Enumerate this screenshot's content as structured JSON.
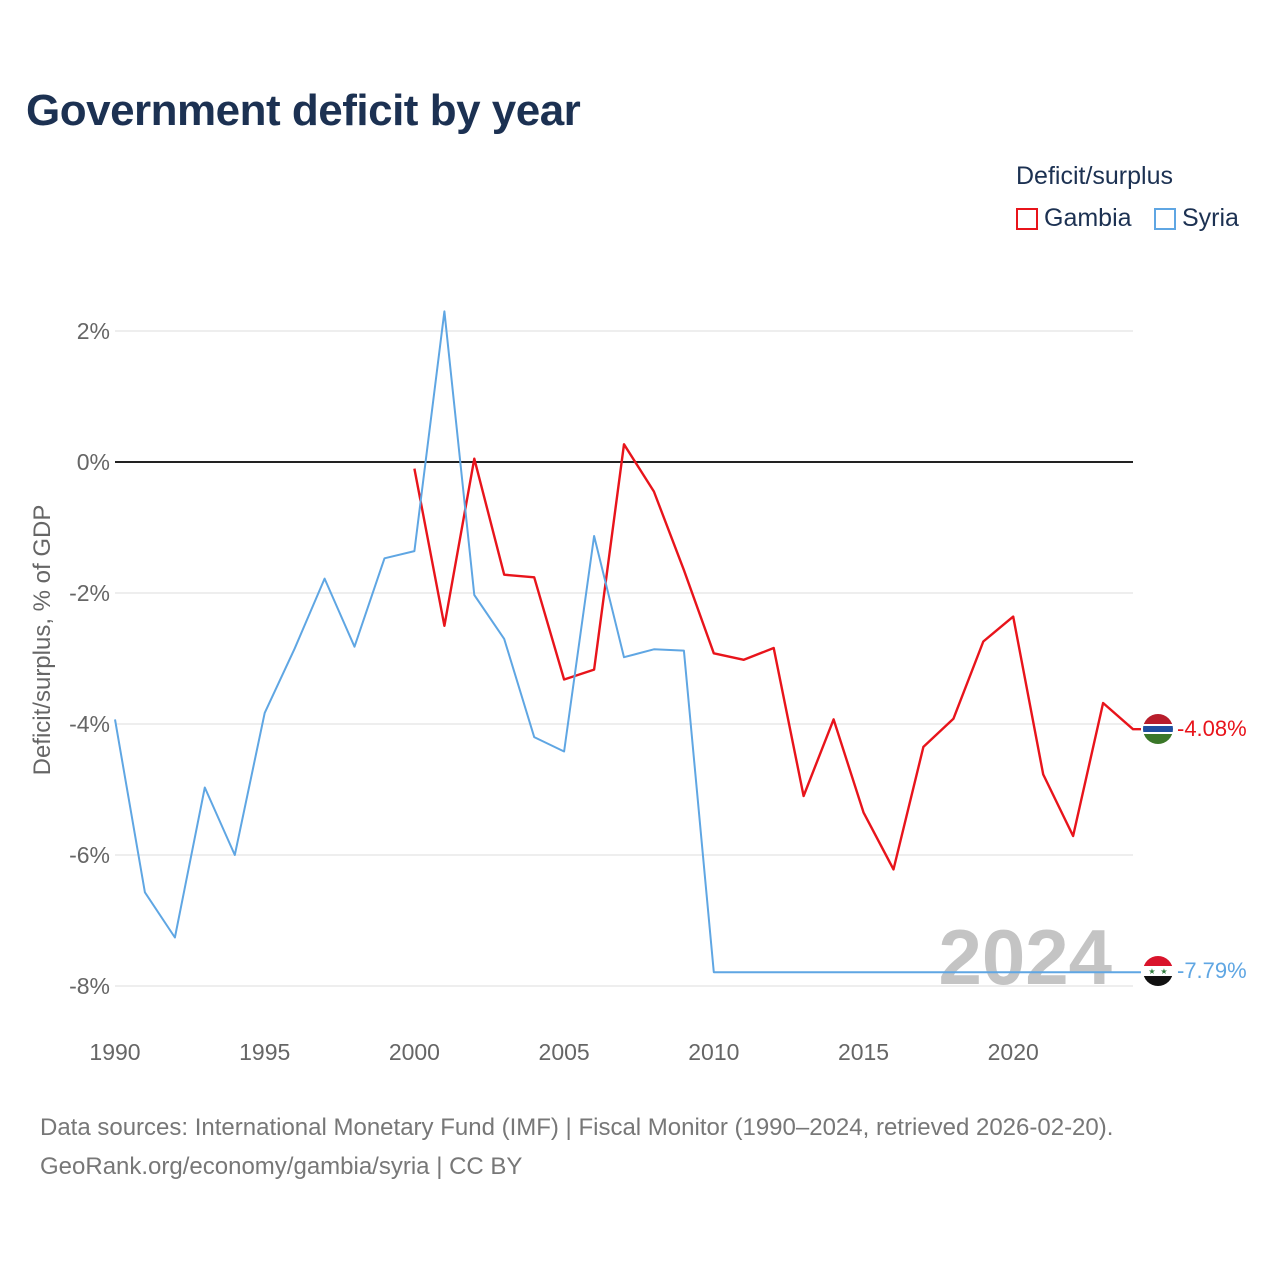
{
  "title": "Government deficit by year",
  "legend": {
    "title": "Deficit/surplus",
    "items": [
      {
        "label": "Gambia",
        "color": "#e8141b"
      },
      {
        "label": "Syria",
        "color": "#5fa6e3"
      }
    ]
  },
  "source_line1": "Data sources: International Monetary Fund (IMF) | Fiscal Monitor (1990–2024, retrieved 2026-02-20).",
  "source_line2": "GeoRank.org/economy/gambia/syria | CC BY",
  "chart_data": {
    "type": "line",
    "title": "Government deficit by year",
    "xlabel": "",
    "ylabel": "Deficit/surplus, % of GDP",
    "xlim": [
      1990,
      2024
    ],
    "ylim": [
      -8,
      2
    ],
    "yticks": [
      2,
      0,
      -2,
      -4,
      -6,
      -8
    ],
    "ytick_labels": [
      "2%",
      "0%",
      "-2%",
      "-4%",
      "-6%",
      "-8%"
    ],
    "xticks": [
      1990,
      1995,
      2000,
      2005,
      2010,
      2015,
      2020
    ],
    "xtick_labels": [
      "1990",
      "1995",
      "2000",
      "2005",
      "2010",
      "2015",
      "2020"
    ],
    "year_watermark": "2024",
    "series": [
      {
        "name": "Gambia",
        "color": "#e8141b",
        "end_label": "-4.08%",
        "x": [
          2000,
          2001,
          2002,
          2003,
          2004,
          2005,
          2006,
          2007,
          2008,
          2009,
          2010,
          2011,
          2012,
          2013,
          2014,
          2015,
          2016,
          2017,
          2018,
          2019,
          2020,
          2021,
          2022,
          2023,
          2024
        ],
        "values": [
          -0.1,
          -2.5,
          0.05,
          -1.72,
          -1.76,
          -3.32,
          -3.17,
          0.27,
          -0.45,
          -1.65,
          -2.92,
          -3.02,
          -2.84,
          -5.1,
          -3.93,
          -5.35,
          -6.22,
          -4.35,
          -3.92,
          -2.74,
          -2.36,
          -4.77,
          -5.71,
          -3.68,
          -4.08
        ]
      },
      {
        "name": "Syria",
        "color": "#5fa6e3",
        "end_label": "-7.79%",
        "x": [
          1990,
          1991,
          1992,
          1993,
          1994,
          1995,
          1996,
          1997,
          1998,
          1999,
          2000,
          2001,
          2002,
          2003,
          2004,
          2005,
          2006,
          2007,
          2008,
          2009,
          2010,
          2011,
          2012,
          2013,
          2014,
          2015,
          2016,
          2017,
          2018,
          2019,
          2020,
          2021,
          2022,
          2023,
          2024
        ],
        "values": [
          -3.93,
          -6.57,
          -7.26,
          -4.97,
          -6.0,
          -3.83,
          -2.85,
          -1.78,
          -2.82,
          -1.47,
          -1.36,
          2.3,
          -2.03,
          -2.7,
          -4.2,
          -4.42,
          -1.13,
          -2.98,
          -2.86,
          -2.88,
          -7.79,
          -7.79,
          -7.79,
          -7.79,
          -7.79,
          -7.79,
          -7.79,
          -7.79,
          -7.79,
          -7.79,
          -7.79,
          -7.79,
          -7.79,
          -7.79,
          -7.79
        ]
      }
    ]
  }
}
